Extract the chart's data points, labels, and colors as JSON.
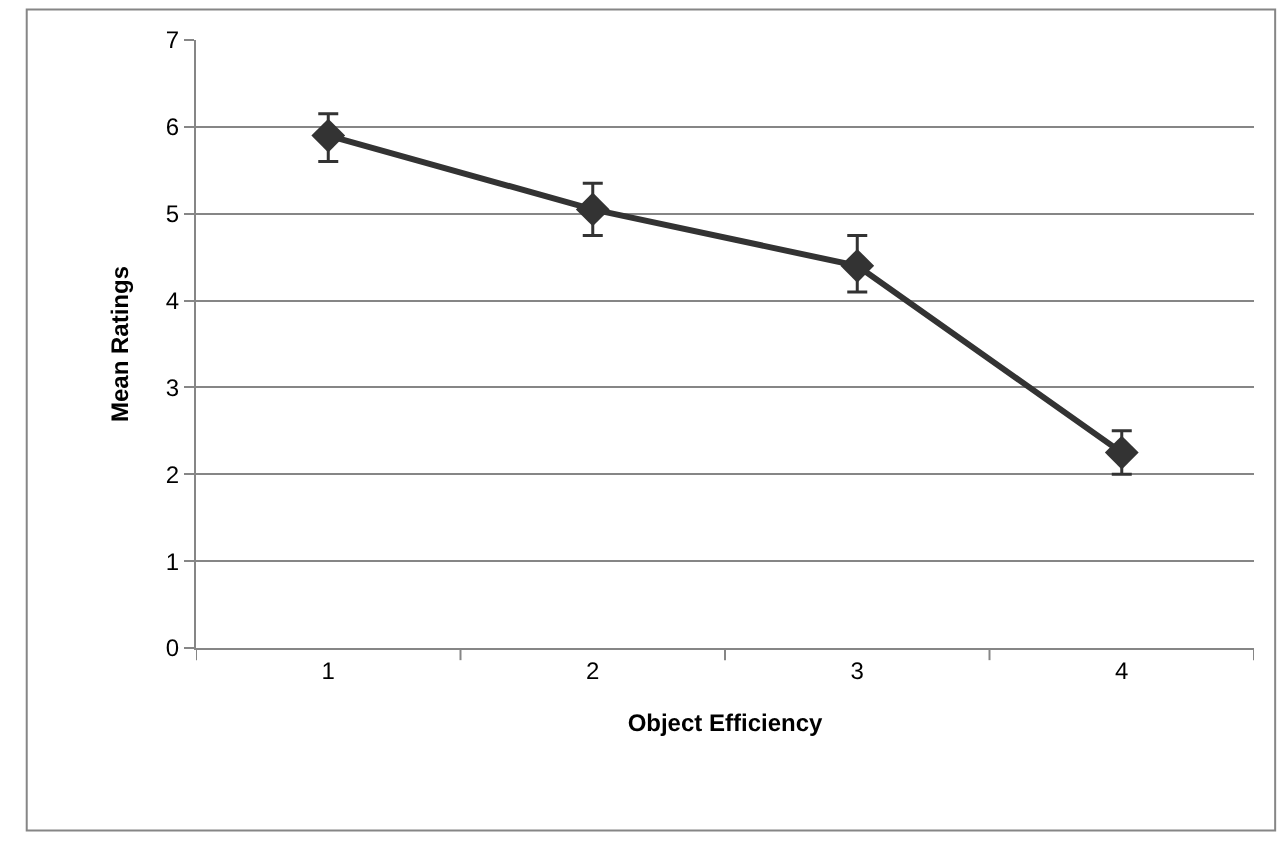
{
  "chart_data": {
    "type": "line",
    "xlabel": "Object Efficiency",
    "ylabel": "Mean Ratings",
    "categories": [
      "1",
      "2",
      "3",
      "4"
    ],
    "series": [
      {
        "color": "#333333",
        "values": [
          5.9,
          5.05,
          4.4,
          2.25
        ],
        "errors": [
          [
            5.6,
            6.15
          ],
          [
            4.75,
            5.35
          ],
          [
            4.1,
            4.75
          ],
          [
            2.0,
            2.5
          ]
        ]
      }
    ],
    "ylim": [
      0,
      7
    ],
    "yticks": [
      0,
      1,
      2,
      3,
      4,
      5,
      6,
      7
    ],
    "grid": "y",
    "marker": "diamond",
    "line_style": "solid",
    "legend": false
  }
}
